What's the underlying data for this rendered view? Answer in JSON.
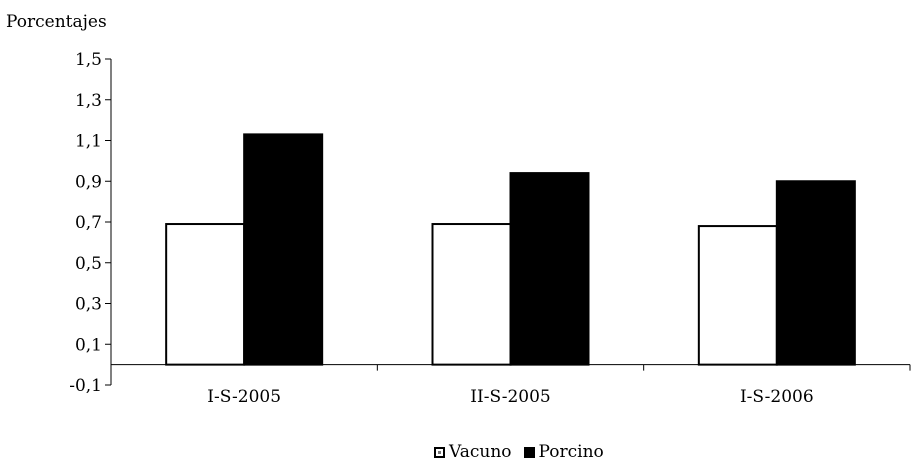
{
  "chart_data": {
    "type": "bar",
    "title": "",
    "ylabel": "Porcentajes",
    "xlabel": "",
    "categories": [
      "I-S-2005",
      "II-S-2005",
      "I-S-2006"
    ],
    "series": [
      {
        "name": "Vacuno",
        "values": [
          0.69,
          0.69,
          0.68
        ],
        "color": "#ffffff"
      },
      {
        "name": "Porcino",
        "values": [
          1.13,
          0.94,
          0.9
        ],
        "color": "#000000"
      }
    ],
    "ylim": [
      -0.1,
      1.5
    ],
    "yticks": [
      "1,5",
      "1,3",
      "1,1",
      "0,9",
      "0,7",
      "0,5",
      "0,3",
      "0,1",
      "-0,1"
    ],
    "ytick_values": [
      1.5,
      1.3,
      1.1,
      0.9,
      0.7,
      0.5,
      0.3,
      0.1,
      -0.1
    ],
    "grid": false,
    "legend": "bottom-center"
  }
}
